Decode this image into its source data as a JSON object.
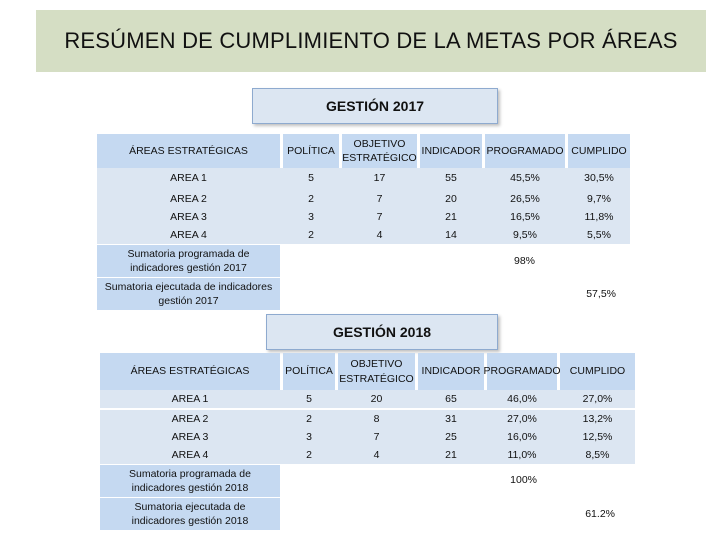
{
  "title": "RESÚMEN DE CUMPLIMIENTO DE LA METAS POR ÁREAS",
  "section_2017": {
    "heading": "GESTIÓN  2017",
    "headers": [
      "ÁREAS ESTRATÉGICAS",
      "POLÍTICA",
      "OBJETIVO ESTRATÉGICO",
      "INDICADOR",
      "PROGRAMADO",
      "CUMPLIDO"
    ],
    "rows": [
      {
        "area": "AREA 1",
        "politica": "5",
        "objetivo": "17",
        "indicador": "55",
        "programado": "45,5%",
        "cumplido": "30,5%"
      },
      {
        "area": "AREA 2",
        "politica": "2",
        "objetivo": "7",
        "indicador": "20",
        "programado": "26,5%",
        "cumplido": "9,7%"
      },
      {
        "area": "AREA 3",
        "politica": "3",
        "objetivo": "7",
        "indicador": "21",
        "programado": "16,5%",
        "cumplido": "11,8%"
      },
      {
        "area": "AREA 4",
        "politica": "2",
        "objetivo": "4",
        "indicador": "14",
        "programado": "9,5%",
        "cumplido": "5,5%"
      }
    ],
    "sum_programada_label": "Sumatoria programada de indicadores gestión 2017",
    "sum_programada_value": "98%",
    "sum_ejecutada_label": "Sumatoria ejecutada de indicadores gestión 2017",
    "sum_ejecutada_value": "57,5%"
  },
  "section_2018": {
    "heading": "GESTIÓN 2018",
    "headers": [
      "ÁREAS ESTRATÉGICAS",
      "POLÍTICA",
      "OBJETIVO ESTRATÉGICO",
      "INDICADOR",
      "PROGRAMADO",
      "CUMPLIDO"
    ],
    "rows": [
      {
        "area": "AREA 1",
        "politica": "5",
        "objetivo": "20",
        "indicador": "65",
        "programado": "46,0%",
        "cumplido": "27,0%"
      },
      {
        "area": "AREA 2",
        "politica": "2",
        "objetivo": "8",
        "indicador": "31",
        "programado": "27,0%",
        "cumplido": "13,2%"
      },
      {
        "area": "AREA 3",
        "politica": "3",
        "objetivo": "7",
        "indicador": "25",
        "programado": "16,0%",
        "cumplido": "12,5%"
      },
      {
        "area": "AREA 4",
        "politica": "2",
        "objetivo": "4",
        "indicador": "21",
        "programado": "11,0%",
        "cumplido": "8,5%"
      }
    ],
    "sum_programada_label": "Sumatoria programada de indicadores gestión 2018",
    "sum_programada_value": "100%",
    "sum_ejecutada_label": "Sumatoria ejecutada de indicadores gestión 2018",
    "sum_ejecutada_value": "61.2%"
  }
}
